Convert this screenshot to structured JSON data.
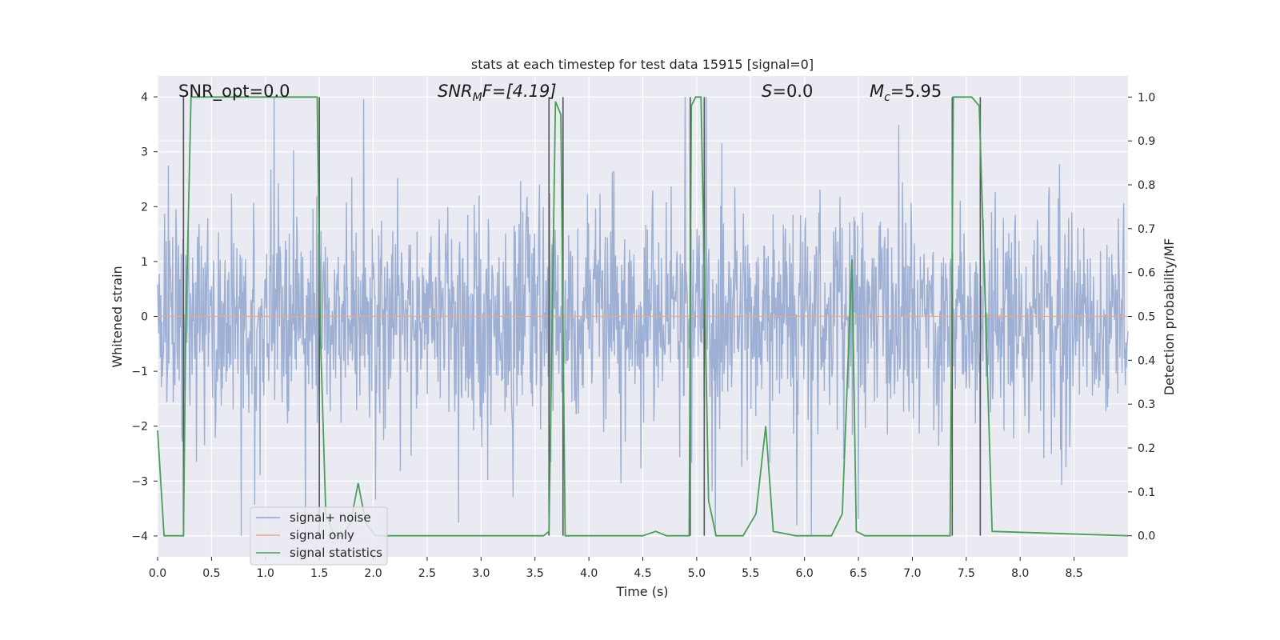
{
  "chart_data": {
    "type": "line",
    "title": "stats at each timestep for test data 15915 [signal=0]",
    "xlabel": "Time (s)",
    "ylabel_left": "Whitened strain",
    "ylabel_right": "Detection probability/MF",
    "xlim": [
      0.0,
      9.0
    ],
    "ylim_left": [
      -4.38,
      4.38
    ],
    "ylim_right": [
      -0.048,
      1.048
    ],
    "x_ticks": [
      "0.0",
      "0.5",
      "1.0",
      "1.5",
      "2.0",
      "2.5",
      "3.0",
      "3.5",
      "4.0",
      "4.5",
      "5.0",
      "5.5",
      "6.0",
      "6.5",
      "7.0",
      "7.5",
      "8.0",
      "8.5"
    ],
    "y_ticks_left": [
      "4",
      "3",
      "2",
      "1",
      "0",
      "−1",
      "−2",
      "−3",
      "−4"
    ],
    "y_ticks_right": [
      "1.0",
      "0.9",
      "0.8",
      "0.7",
      "0.6",
      "0.5",
      "0.4",
      "0.3",
      "0.2",
      "0.1",
      "0.0"
    ],
    "grid": true,
    "legend_position": "lower-left",
    "annotations": {
      "snr_opt": "SNR_opt=0.0",
      "snr_mf_main": "SNR",
      "snr_mf_sub": "M",
      "snr_mf_tail": "F=[4.19]",
      "s_main": "S",
      "s_tail": "=0.0",
      "mc_main": "M",
      "mc_sub": "c",
      "mc_tail": "=5.95"
    },
    "series": [
      {
        "name": "signal+ noise",
        "color": "#8fa5cd",
        "description_values": "whitened noise, amplitude mostly within ±2.5, peaks up to about ±4",
        "envelope": {
          "x_range": [
            0.0,
            9.0
          ],
          "typical_abs_max": 2.5,
          "extreme_abs_max": 4.0
        }
      },
      {
        "name": "signal only",
        "color": "#e8a98b",
        "values_note": "zero everywhere"
      },
      {
        "name": "signal statistics",
        "color": "#4a9e58",
        "x": [
          0.0,
          0.06,
          0.09,
          0.24,
          0.26,
          0.31,
          1.48,
          1.51,
          1.56,
          1.64,
          1.72,
          1.79,
          1.86,
          1.93,
          2.02,
          3.58,
          3.63,
          3.69,
          3.74,
          3.78,
          4.5,
          4.62,
          4.72,
          4.93,
          4.95,
          4.99,
          5.04,
          5.11,
          5.18,
          5.26,
          5.43,
          5.55,
          5.64,
          5.71,
          5.92,
          6.25,
          6.35,
          6.44,
          6.48,
          6.56,
          7.35,
          7.38,
          7.44,
          7.55,
          7.62,
          7.68,
          7.74,
          9.0
        ],
        "y": [
          0.24,
          0.0,
          0.0,
          0.0,
          0.45,
          1.0,
          1.0,
          0.46,
          0.05,
          0.0,
          0.0,
          0.03,
          0.12,
          0.03,
          0.0,
          0.0,
          0.01,
          0.99,
          0.96,
          0.0,
          0.0,
          0.01,
          0.0,
          0.0,
          0.98,
          1.0,
          1.0,
          0.08,
          0.0,
          0.0,
          0.0,
          0.05,
          0.25,
          0.01,
          0.0,
          0.0,
          0.05,
          0.63,
          0.01,
          0.0,
          0.0,
          1.0,
          1.0,
          1.0,
          0.98,
          0.5,
          0.01,
          0.0
        ]
      }
    ],
    "vertical_markers": {
      "color": "#555555",
      "x": [
        0.24,
        1.5,
        3.63,
        3.76,
        4.94,
        5.07,
        7.37,
        7.63
      ]
    }
  }
}
